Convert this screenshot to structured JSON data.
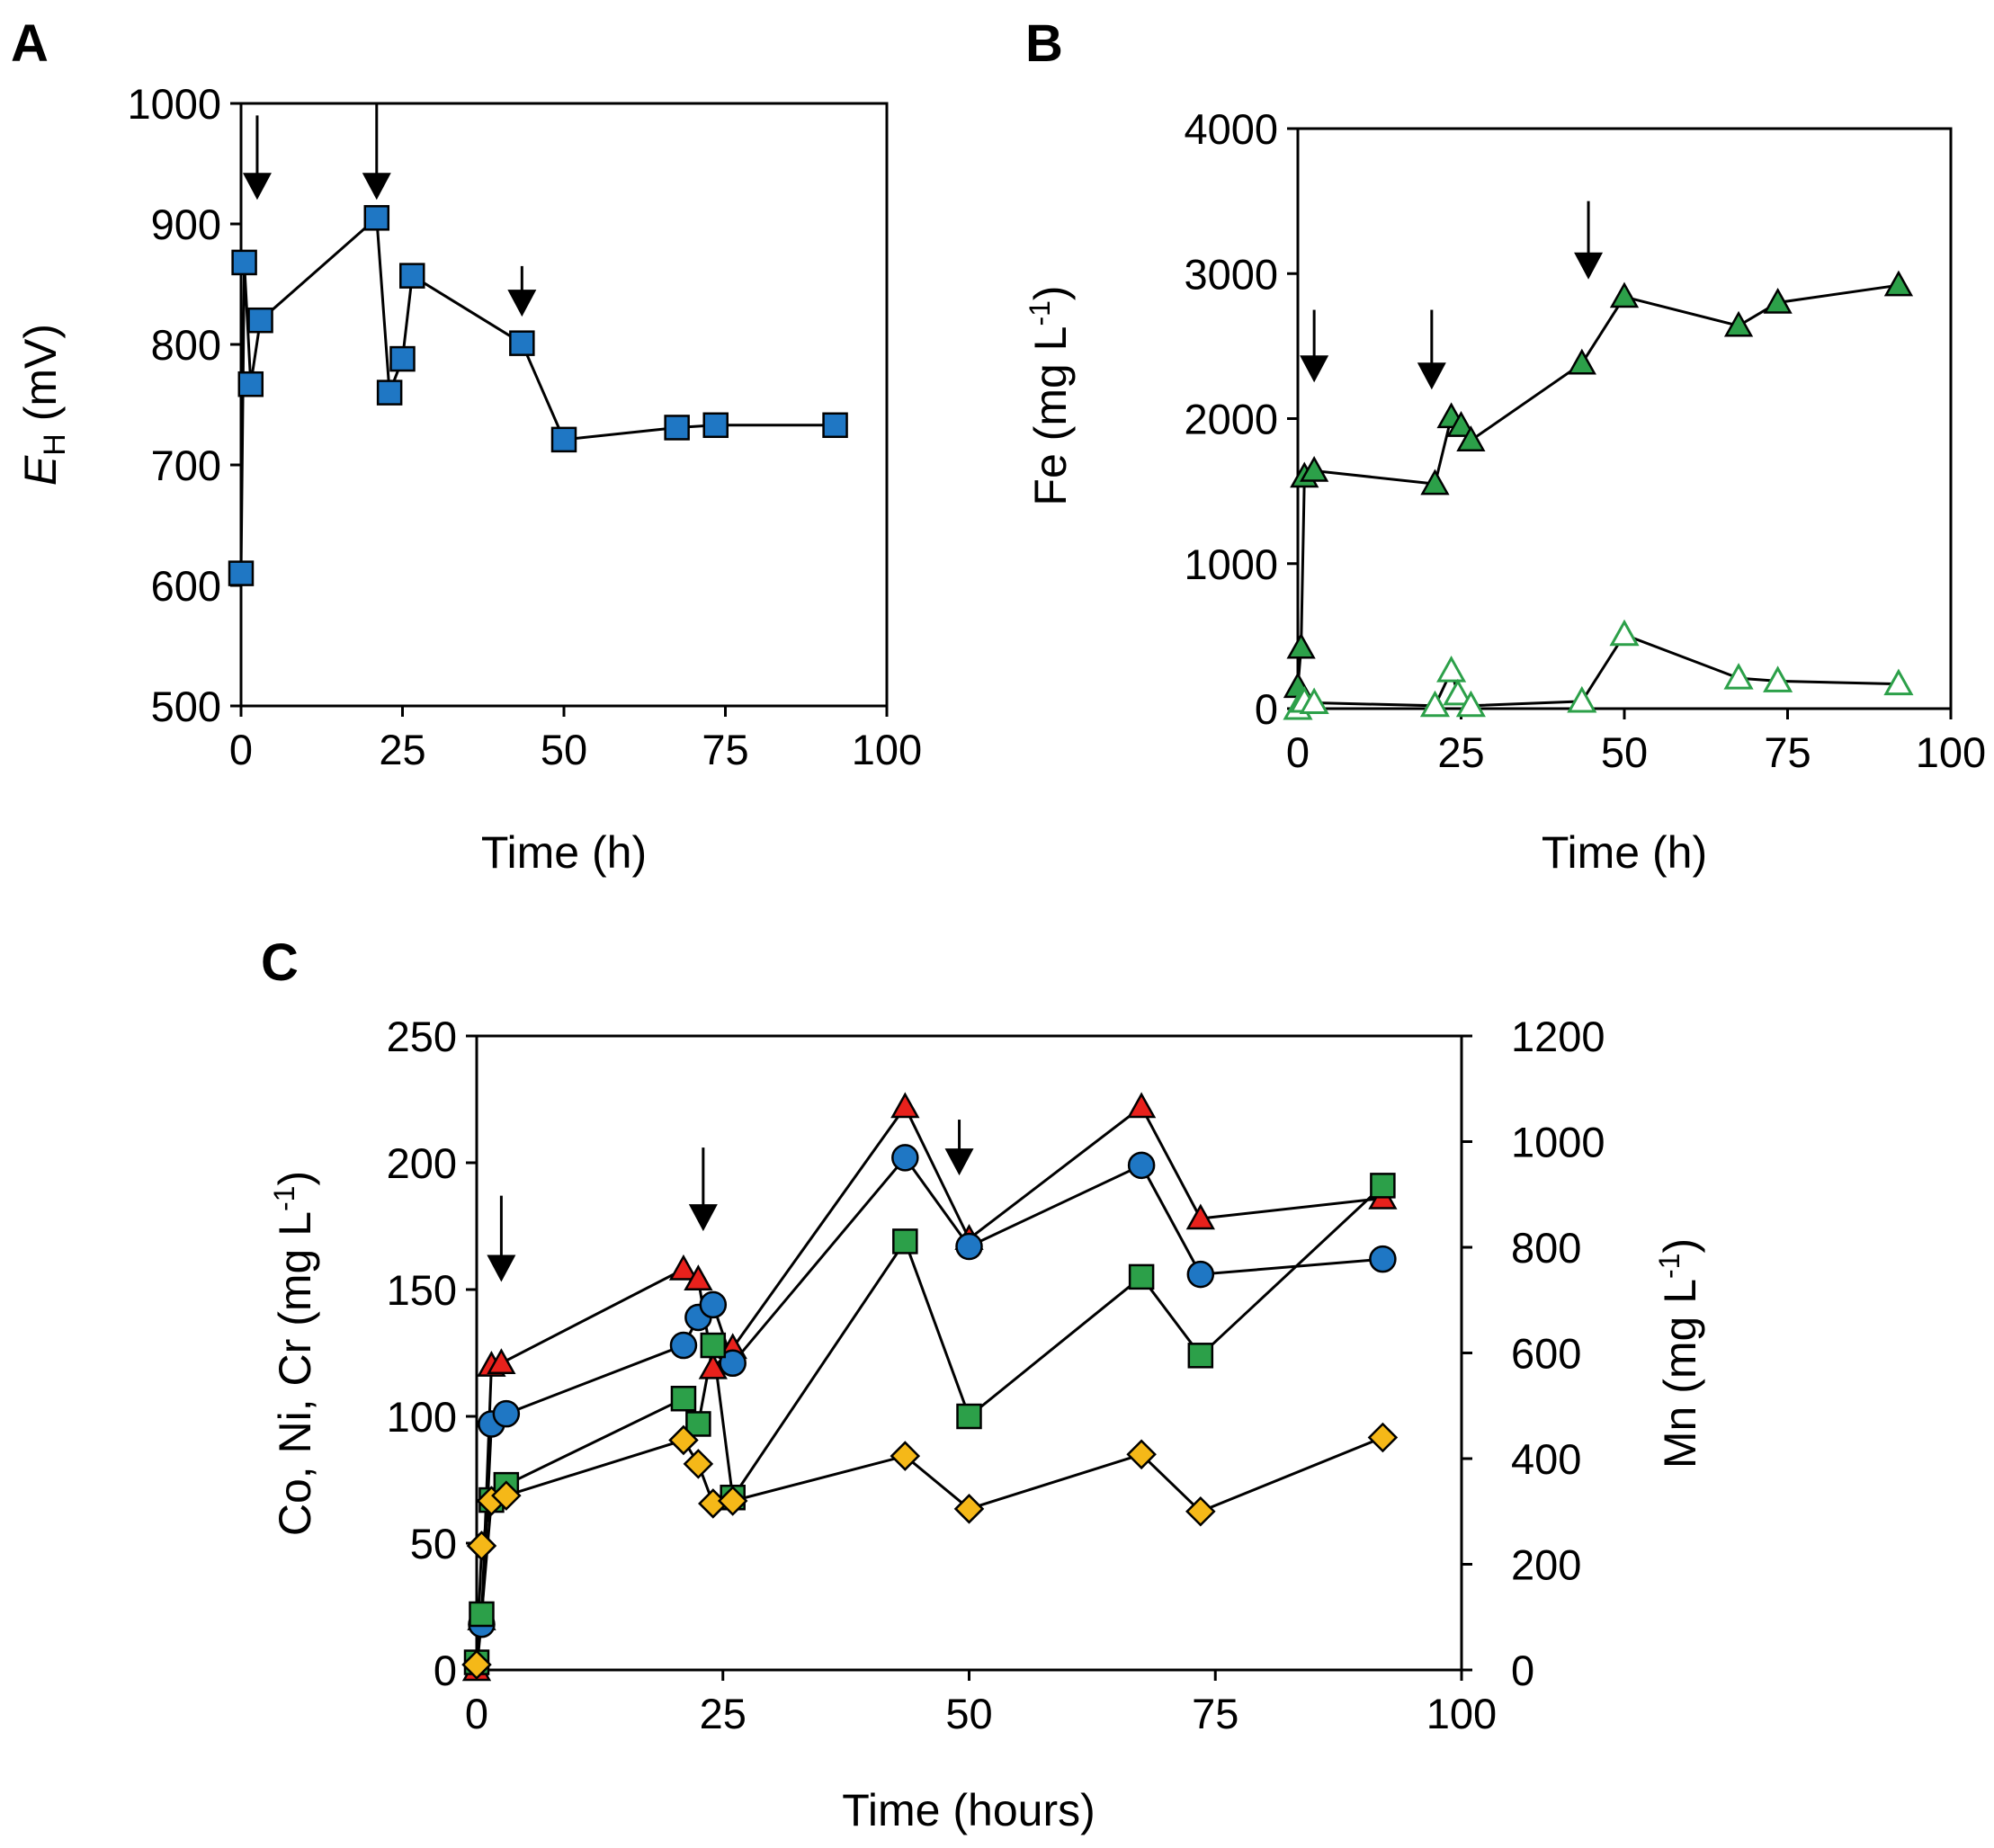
{
  "figure": {
    "panels": [
      "A",
      "B",
      "C"
    ]
  },
  "chart_data": [
    {
      "panel": "A",
      "type": "line",
      "title": "",
      "xlabel": "Time (h)",
      "ylabel_main": "E",
      "ylabel_sub": "H",
      "ylabel_unit": " (mV)",
      "xlim": [
        0,
        100
      ],
      "ylim": [
        500,
        1000
      ],
      "xticks": [
        0,
        25,
        50,
        75,
        100
      ],
      "yticks": [
        500,
        600,
        700,
        800,
        900,
        1000
      ],
      "grid": false,
      "series": [
        {
          "name": "EH",
          "marker": "square",
          "fill": "#1f77c4",
          "points": [
            [
              0,
              610
            ],
            [
              0.5,
              868
            ],
            [
              1.5,
              767
            ],
            [
              3,
              820
            ],
            [
              21,
              905
            ],
            [
              23,
              760
            ],
            [
              25,
              788
            ],
            [
              26.5,
              857
            ],
            [
              43.5,
              801
            ],
            [
              50,
              721
            ],
            [
              67.5,
              731
            ],
            [
              73.5,
              733
            ],
            [
              92,
              733
            ]
          ]
        }
      ],
      "arrows": [
        {
          "x": 2.5,
          "style": "bold",
          "y_top": 990,
          "y_tip": 920
        },
        {
          "x": 21,
          "style": "bold",
          "y_top": 1000,
          "y_tip": 920
        },
        {
          "x": 43.5,
          "style": "bold",
          "y_top": 865,
          "y_tip": 823
        }
      ]
    },
    {
      "panel": "B",
      "type": "line",
      "title": "",
      "xlabel": "Time (h)",
      "ylabel": "Fe (mg L",
      "ylabel_sup": "-1",
      "ylabel_close": ")",
      "xlim": [
        0,
        100
      ],
      "ylim": [
        0,
        4000
      ],
      "xticks": [
        0,
        25,
        50,
        75,
        100
      ],
      "yticks": [
        0,
        1000,
        2000,
        3000,
        4000
      ],
      "grid": false,
      "series": [
        {
          "name": "Fe filled",
          "marker": "triangle",
          "fill": "#2ca049",
          "points": [
            [
              0,
              150
            ],
            [
              0.5,
              420
            ],
            [
              1,
              1600
            ],
            [
              2.5,
              1640
            ],
            [
              21,
              1550
            ],
            [
              23.5,
              2010
            ],
            [
              25,
              1950
            ],
            [
              26.5,
              1850
            ],
            [
              43.5,
              2380
            ],
            [
              50,
              2840
            ],
            [
              67.5,
              2640
            ],
            [
              73.5,
              2800
            ],
            [
              92,
              2920
            ]
          ]
        },
        {
          "name": "Fe open",
          "marker": "triangle-open",
          "stroke": "#2ca049",
          "points": [
            [
              0,
              0
            ],
            [
              1,
              50
            ],
            [
              2.5,
              40
            ],
            [
              21,
              20
            ],
            [
              23.5,
              260
            ],
            [
              24.5,
              100
            ],
            [
              26.5,
              20
            ],
            [
              43.5,
              50
            ],
            [
              50,
              510
            ],
            [
              67.5,
              210
            ],
            [
              73.5,
              190
            ],
            [
              92,
              170
            ]
          ]
        }
      ],
      "arrows": [
        {
          "x": 2.5,
          "y_top": 2750,
          "y_tip": 2250
        },
        {
          "x": 20.5,
          "y_top": 2750,
          "y_tip": 2200
        },
        {
          "x": 44.5,
          "y_top": 3500,
          "y_tip": 2960
        }
      ]
    },
    {
      "panel": "C",
      "type": "line",
      "title": "",
      "xlabel": "Time (hours)",
      "ylabel_left": "Co, Ni, Cr (mg L",
      "ylabel_left_sup": "-1",
      "ylabel_left_close": ")",
      "ylabel_right": "Mn (mg L",
      "ylabel_right_sup": "-1",
      "ylabel_right_close": ")",
      "xlim": [
        0,
        100
      ],
      "ylim_left": [
        0,
        250
      ],
      "ylim_right": [
        0,
        1200
      ],
      "xticks": [
        0,
        25,
        50,
        75,
        100
      ],
      "yticks_left": [
        0,
        50,
        100,
        150,
        200,
        250
      ],
      "yticks_right": [
        0,
        200,
        400,
        600,
        800,
        1000,
        1200
      ],
      "grid": false,
      "series": [
        {
          "name": "Cr (red triangle)",
          "marker": "triangle",
          "fill": "#e8211c",
          "axis": "left",
          "points": [
            [
              0,
              0
            ],
            [
              0.5,
              20
            ],
            [
              1.5,
              120
            ],
            [
              2.5,
              121
            ],
            [
              21,
              158
            ],
            [
              22.5,
              154
            ],
            [
              24,
              119
            ],
            [
              26,
              127
            ],
            [
              43.5,
              222
            ],
            [
              50,
              170
            ],
            [
              67.5,
              222
            ],
            [
              73.5,
              178
            ],
            [
              92,
              186
            ]
          ]
        },
        {
          "name": "Co/Ni (blue circle)",
          "marker": "circle",
          "fill": "#1f77c4",
          "axis": "left",
          "points": [
            [
              0.5,
              18
            ],
            [
              1.5,
              97
            ],
            [
              3,
              101
            ],
            [
              21,
              128
            ],
            [
              22.5,
              139
            ],
            [
              24,
              144
            ],
            [
              26,
              121
            ],
            [
              43.5,
              202
            ],
            [
              50,
              167
            ],
            [
              67.5,
              199
            ],
            [
              73.5,
              156
            ],
            [
              92,
              162
            ]
          ]
        },
        {
          "name": "Co/Ni (green square)",
          "marker": "square",
          "fill": "#2ca049",
          "axis": "left",
          "points": [
            [
              0,
              3
            ],
            [
              0.5,
              22
            ],
            [
              1.5,
              67
            ],
            [
              3,
              73
            ],
            [
              21,
              107
            ],
            [
              22.5,
              97
            ],
            [
              24,
              128
            ],
            [
              26,
              68
            ],
            [
              43.5,
              169
            ],
            [
              50,
              100
            ],
            [
              67.5,
              155
            ],
            [
              73.5,
              124
            ],
            [
              92,
              191
            ]
          ]
        },
        {
          "name": "Mn (orange diamond)",
          "marker": "diamond",
          "fill": "#f5b818",
          "axis": "right",
          "points": [
            [
              0,
              10
            ],
            [
              0.5,
              235
            ],
            [
              1.5,
              320
            ],
            [
              3,
              330
            ],
            [
              21,
              435
            ],
            [
              22.5,
              390
            ],
            [
              24,
              315
            ],
            [
              26,
              320
            ],
            [
              43.5,
              405
            ],
            [
              50,
              305
            ],
            [
              67.5,
              408
            ],
            [
              73.5,
              300
            ],
            [
              92,
              440
            ]
          ]
        }
      ],
      "arrows": [
        {
          "x": 2.5,
          "y_top": 187,
          "y_tip": 153
        },
        {
          "x": 23,
          "y_top": 206,
          "y_tip": 173
        },
        {
          "x": 49,
          "y_top": 217,
          "y_tip": 195
        }
      ]
    }
  ]
}
